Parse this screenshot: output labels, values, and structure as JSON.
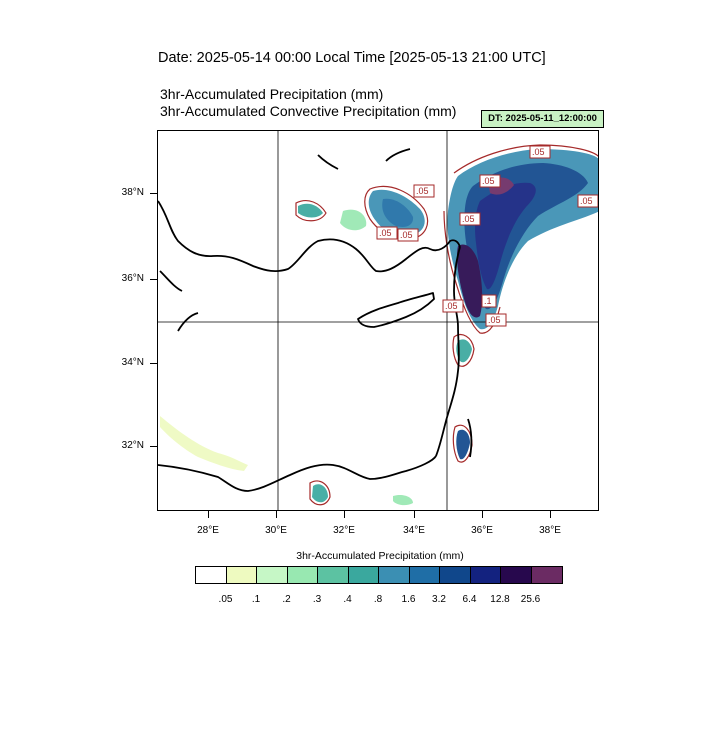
{
  "header": {
    "date_line": "Date: 2025-05-14  00:00 Local Time [2025-05-13  21:00 UTC]",
    "title_1": "3hr-Accumulated Precipitation   (mm)",
    "title_2": "3hr-Accumulated Convective Precipitation   (mm)",
    "dt_label": "DT: 2025-05-11_12:00:00"
  },
  "map": {
    "lat_labels": [
      "38°N",
      "36°N",
      "34°N",
      "32°N"
    ],
    "lon_labels": [
      "28°E",
      "30°E",
      "32°E",
      "34°E",
      "36°E",
      "38°E"
    ],
    "contour_labels": [
      ".05",
      ".05",
      ".05",
      ".05",
      ".05",
      ".05",
      ".1",
      ".05",
      ".05",
      ".05"
    ],
    "coast_color": "#000000",
    "contour_color": "#a52a2a"
  },
  "colorbar": {
    "title": "3hr-Accumulated Precipitation  (mm)",
    "levels": [
      ".05",
      ".1",
      ".2",
      ".3",
      ".4",
      ".8",
      "1.6",
      "3.2",
      "6.4",
      "12.8",
      "25.6"
    ],
    "colors": [
      "#ffffff",
      "#eefac0",
      "#c6f7c6",
      "#98e8b1",
      "#5cc2a2",
      "#3aa89e",
      "#3b8fb3",
      "#1f6ea6",
      "#10478b",
      "#13227f",
      "#27084d",
      "#6b2b63"
    ]
  }
}
